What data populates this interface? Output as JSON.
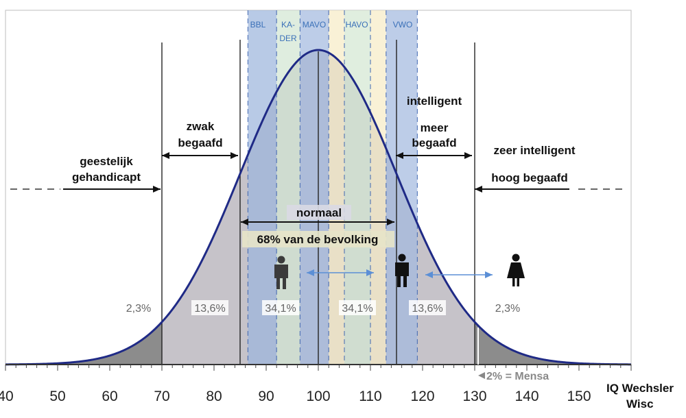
{
  "chart_data": {
    "type": "area",
    "title": "",
    "xlabel": "IQ Wechsler\nWisc",
    "ylabel": "",
    "xlim": [
      40,
      160
    ],
    "x_ticks": [
      40,
      50,
      60,
      70,
      80,
      90,
      100,
      110,
      120,
      130,
      140,
      150
    ],
    "curve": {
      "type": "normal distribution",
      "mean": 100,
      "sd": 15
    },
    "boundaries": [
      70,
      85,
      100,
      115,
      130
    ],
    "region_percentages": [
      {
        "from": 55,
        "to": 70,
        "label": "2,3%"
      },
      {
        "from": 70,
        "to": 85,
        "label": "13,6%"
      },
      {
        "from": 85,
        "to": 100,
        "label": "34,1%"
      },
      {
        "from": 100,
        "to": 115,
        "label": "34,1%"
      },
      {
        "from": 115,
        "to": 130,
        "label": "13,6%"
      },
      {
        "from": 130,
        "to": 145,
        "label": "2,3%"
      }
    ],
    "school_bands": [
      {
        "label": "BBL",
        "from": 86.5,
        "to": 92,
        "color": "#9db6dc"
      },
      {
        "label": "KA-DER",
        "from": 92,
        "to": 96.5,
        "color": "#d3e6d2"
      },
      {
        "label": "MAVO",
        "from": 96.5,
        "to": 102,
        "color": "#a4badf"
      },
      {
        "label": "",
        "from": 102,
        "to": 105,
        "color": "#f6ecc6"
      },
      {
        "label": "HAVO",
        "from": 105,
        "to": 110,
        "color": "#d4e7d2"
      },
      {
        "label": "",
        "from": 110,
        "to": 113,
        "color": "#f6ecc6"
      },
      {
        "label": "VWO",
        "from": 113,
        "to": 119,
        "color": "#a4badf"
      }
    ],
    "categories": [
      {
        "label_lines": [
          "geestelijk",
          "gehandicapt"
        ],
        "range": "< 70"
      },
      {
        "label_lines": [
          "zwak",
          "begaafd"
        ],
        "range": "70-85"
      },
      {
        "label_lines": [
          "normaal",
          "68% van de bevolking"
        ],
        "range": "85-115"
      },
      {
        "label_lines": [
          "intelligent",
          "meer",
          "begaafd"
        ],
        "range": "115-130"
      },
      {
        "label_lines": [
          "zeer intelligent",
          "hoog begaafd"
        ],
        "range": "> 130"
      }
    ],
    "annotations": [
      "2% = Mensa"
    ],
    "colors": {
      "curve": "#1f2a86",
      "tail_shade": "#8c8c8c",
      "middle_shade": "#c6c3c9",
      "grid_frame": "#888888"
    }
  },
  "text": {
    "xlabel_line1": "IQ Wechsler",
    "xlabel_line2": "Wisc",
    "band_kader_line1": "KA-",
    "band_kader_line2": "DER"
  }
}
